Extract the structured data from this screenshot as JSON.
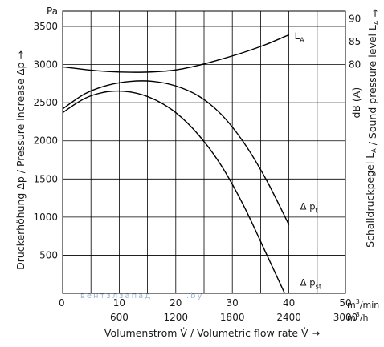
{
  "chart_data": {
    "type": "line",
    "title": "",
    "xlabel": "Volumenstrom V̇ / Volumetric flow rate V̇  →",
    "ylabel_left": "Druckerhöhung Δp / Pressure increase Δp  →",
    "ylabel_right": "Schalldruckpegel L_A / Sound pressure level L_A  →",
    "right_axis_unit": "dB (A)",
    "left_axis_unit": "Pa",
    "x_unit_primary": "m³/min",
    "x_unit_secondary": "m³/h",
    "xlim": [
      0,
      50
    ],
    "ylim": [
      0,
      3700
    ],
    "grid": true,
    "x_ticks_primary": [
      {
        "value": 0,
        "label": "0"
      },
      {
        "value": 10,
        "label": "10"
      },
      {
        "value": 20,
        "label": "20"
      },
      {
        "value": 30,
        "label": "30"
      },
      {
        "value": 40,
        "label": "40"
      },
      {
        "value": 50,
        "label": "50"
      }
    ],
    "x_ticks_secondary": [
      {
        "value": 10,
        "label": "600"
      },
      {
        "value": 20,
        "label": "1200"
      },
      {
        "value": 30,
        "label": "1800"
      },
      {
        "value": 40,
        "label": "2400"
      },
      {
        "value": 50,
        "label": "3000"
      }
    ],
    "y_ticks_left": [
      {
        "value": 500,
        "label": "500"
      },
      {
        "value": 1000,
        "label": "1000"
      },
      {
        "value": 1500,
        "label": "1500"
      },
      {
        "value": 2000,
        "label": "2000"
      },
      {
        "value": 2500,
        "label": "2500"
      },
      {
        "value": 3000,
        "label": "3000"
      },
      {
        "value": 3500,
        "label": "3500"
      }
    ],
    "y_ticks_right": [
      {
        "value": 3000,
        "label": "80"
      },
      {
        "value": 3300,
        "label": "85"
      },
      {
        "value": 3600,
        "label": "90"
      }
    ],
    "series": [
      {
        "name": "L_A",
        "label_main": "L",
        "label_sub": "A",
        "x": [
          0,
          4,
          8,
          12,
          16,
          20,
          24,
          28,
          32,
          36,
          40
        ],
        "y": [
          2970,
          2935,
          2910,
          2900,
          2905,
          2930,
          2990,
          3070,
          3160,
          3265,
          3390
        ]
      },
      {
        "name": "Δ p_t",
        "label_main": "Δ p",
        "label_sub": "t",
        "x": [
          0,
          4,
          8,
          12,
          16,
          20,
          24,
          28,
          32,
          36,
          40
        ],
        "y": [
          2420,
          2620,
          2730,
          2780,
          2780,
          2720,
          2590,
          2350,
          1980,
          1490,
          900
        ]
      },
      {
        "name": "Δ p_st",
        "label_main": "Δ p",
        "label_sub": "st",
        "x": [
          0,
          4,
          8,
          12,
          16,
          20,
          24,
          28,
          32,
          36,
          40
        ],
        "y": [
          2370,
          2560,
          2645,
          2640,
          2550,
          2370,
          2080,
          1680,
          1150,
          520,
          -120
        ]
      }
    ],
    "annotations": [
      "вентзлзапад",
      ".by"
    ]
  }
}
